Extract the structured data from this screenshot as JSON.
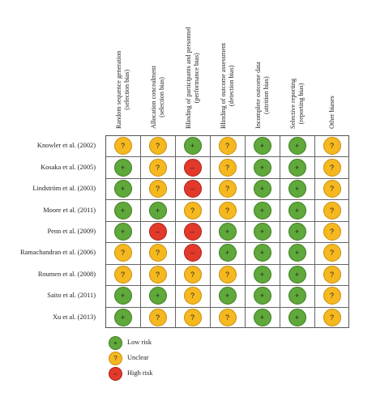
{
  "columns": [
    {
      "line1": "Random sequence generation",
      "line2": "(selection bias)"
    },
    {
      "line1": "Allocation concealment",
      "line2": "(selection bias)"
    },
    {
      "line1": "Blinding of participants and personnel",
      "line2": "(performance bias)"
    },
    {
      "line1": "Blinding of outcome assessment",
      "line2": "(detection bias)"
    },
    {
      "line1": "Incomplete outcome data",
      "line2": "(attrition bias)"
    },
    {
      "line1": "Selective reporting",
      "line2": "(reporting bias)"
    },
    {
      "line1": "Other biases",
      "line2": ""
    }
  ],
  "studies": [
    {
      "name": "Knowler et al. (2002)",
      "ratings": [
        "unclear",
        "unclear",
        "low",
        "unclear",
        "low",
        "low",
        "unclear"
      ]
    },
    {
      "name": "Kosaka et al. (2005)",
      "ratings": [
        "low",
        "unclear",
        "high",
        "unclear",
        "low",
        "low",
        "unclear"
      ]
    },
    {
      "name": "Lindström et al. (2003)",
      "ratings": [
        "low",
        "unclear",
        "high",
        "unclear",
        "low",
        "low",
        "unclear"
      ]
    },
    {
      "name": "Moore et al. (2011)",
      "ratings": [
        "low",
        "low",
        "unclear",
        "unclear",
        "low",
        "low",
        "unclear"
      ]
    },
    {
      "name": "Penn et al. (2009)",
      "ratings": [
        "low",
        "high",
        "high",
        "low",
        "low",
        "low",
        "unclear"
      ]
    },
    {
      "name": "Ramachandran et al. (2006)",
      "ratings": [
        "unclear",
        "unclear",
        "high",
        "low",
        "low",
        "low",
        "unclear"
      ]
    },
    {
      "name": "Roumen et al. (2008)",
      "ratings": [
        "unclear",
        "unclear",
        "unclear",
        "unclear",
        "low",
        "low",
        "unclear"
      ]
    },
    {
      "name": "Saito et al. (2011)",
      "ratings": [
        "low",
        "low",
        "unclear",
        "low",
        "low",
        "low",
        "unclear"
      ]
    },
    {
      "name": "Xu et al. (2013)",
      "ratings": [
        "low",
        "unclear",
        "unclear",
        "unclear",
        "low",
        "low",
        "unclear"
      ]
    }
  ],
  "risk_levels": {
    "low": {
      "symbol": "+",
      "color": "#5fa83a",
      "border": "#3f7d24"
    },
    "unclear": {
      "symbol": "?",
      "color": "#f6b81f",
      "border": "#c78f0e"
    },
    "high": {
      "symbol": "–",
      "color": "#e3392b",
      "border": "#a8241a"
    }
  },
  "legend": [
    {
      "level": "low",
      "label": "Low risk"
    },
    {
      "level": "unclear",
      "label": "Unclear"
    },
    {
      "level": "high",
      "label": "High risk"
    }
  ]
}
